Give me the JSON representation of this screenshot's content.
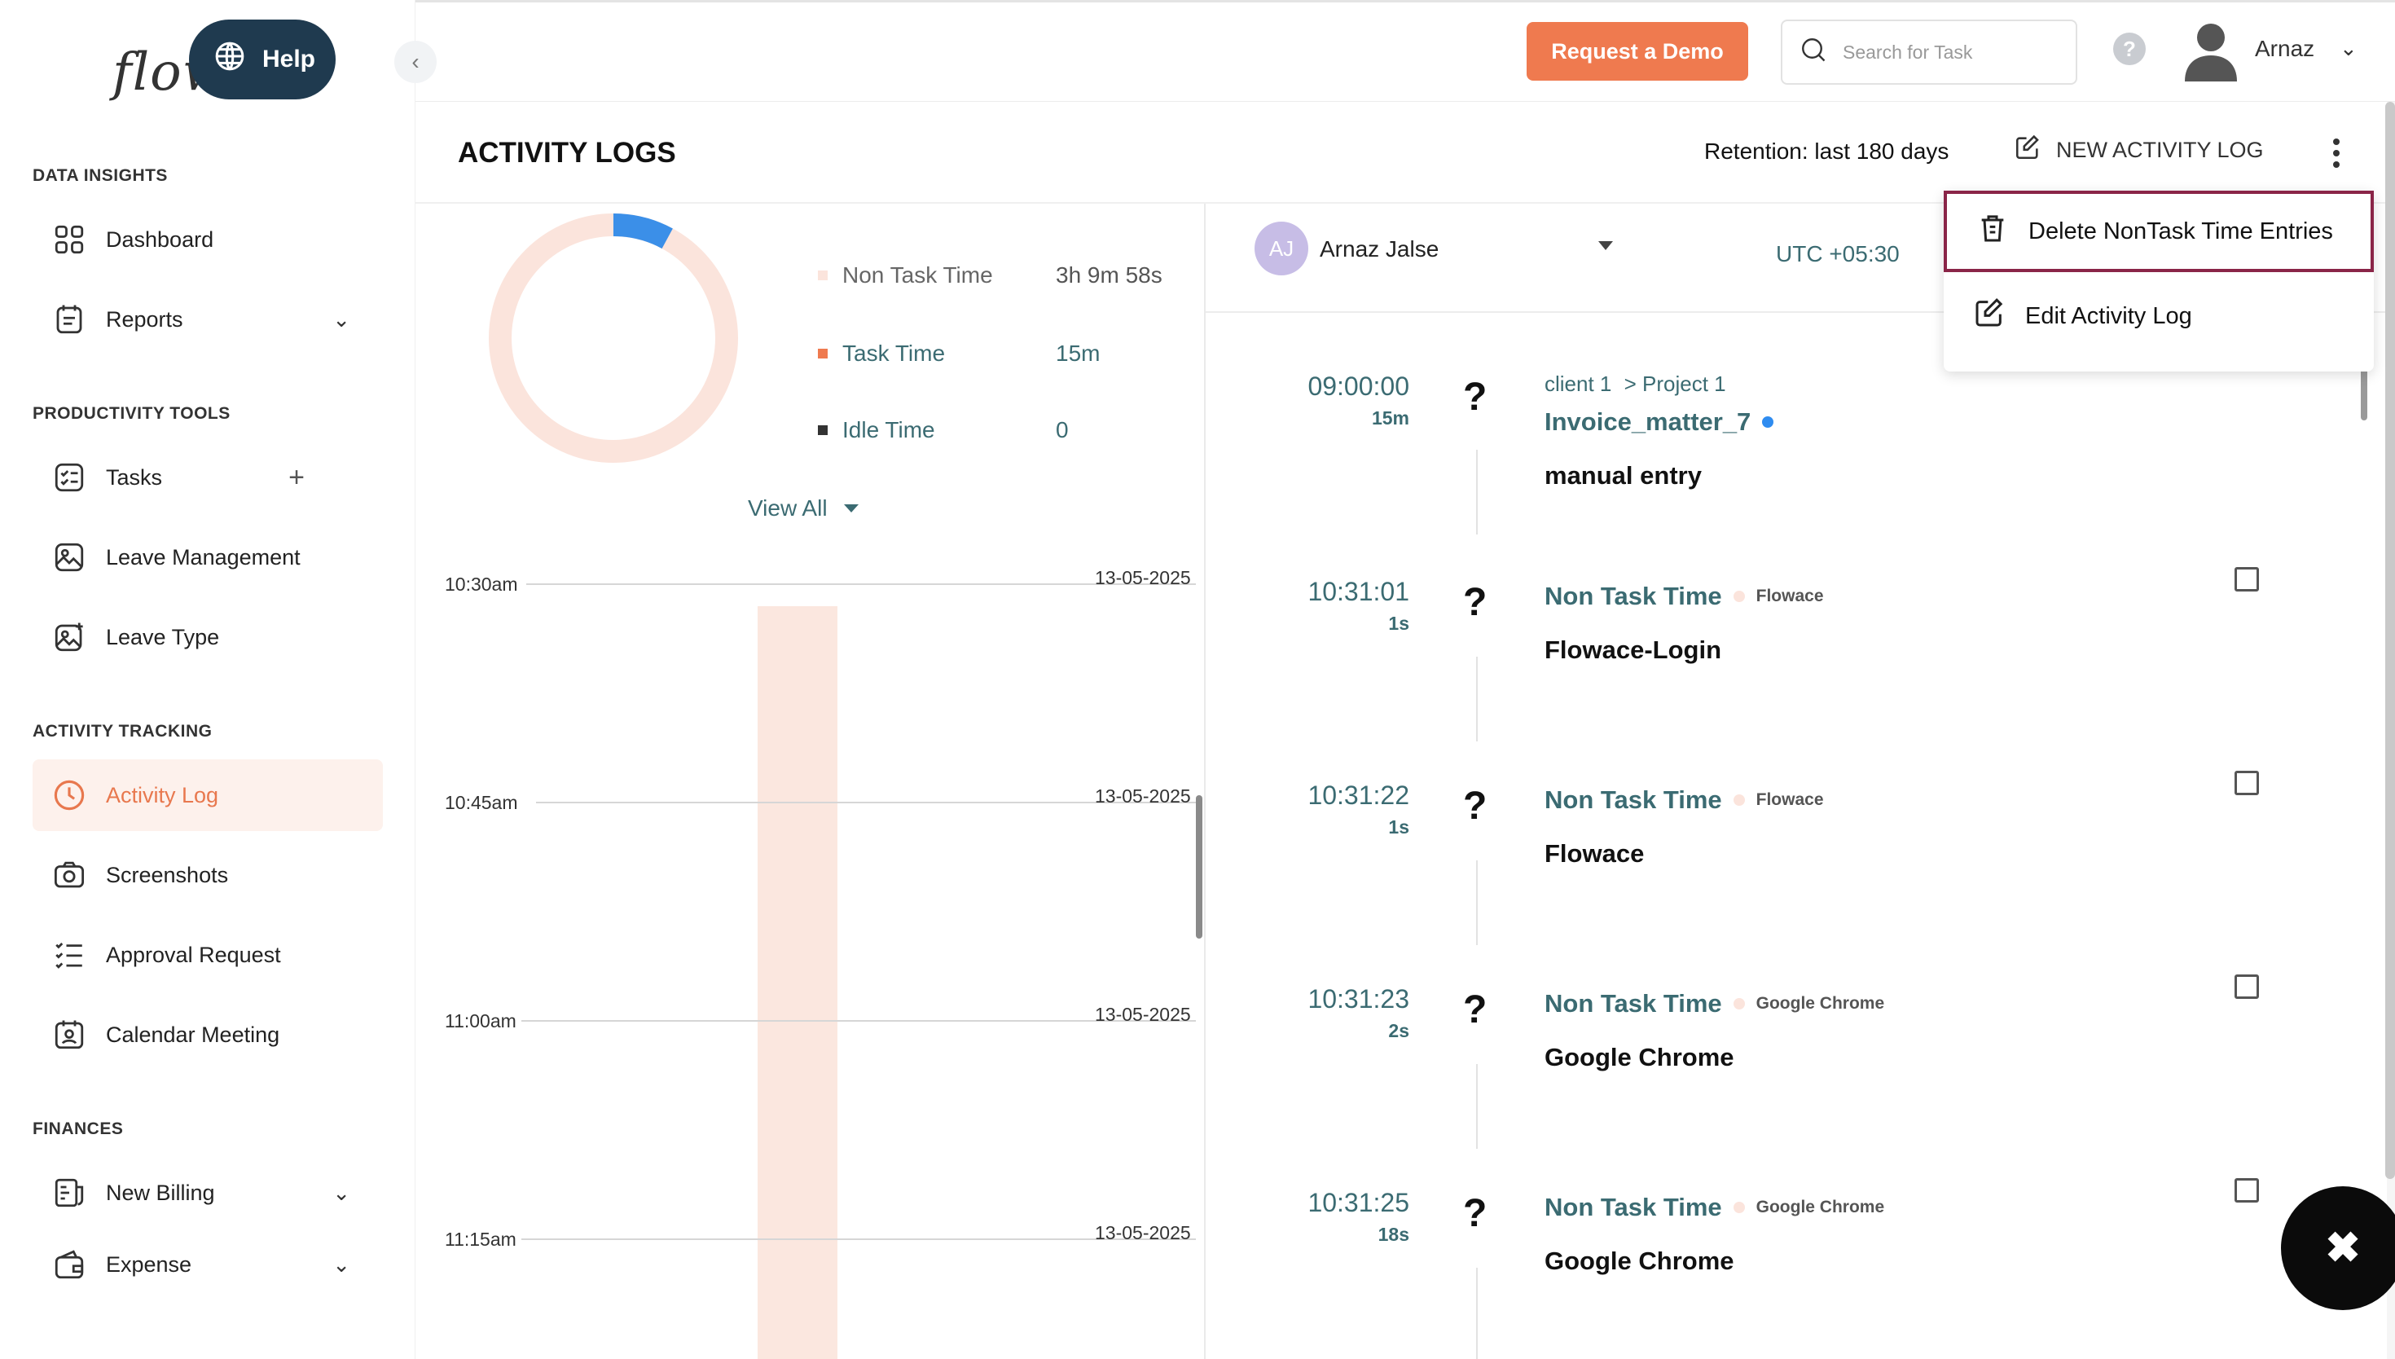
{
  "app": {
    "logo": "flow",
    "help_label": "Help"
  },
  "sidebar": {
    "sections": [
      {
        "label": "DATA INSIGHTS"
      },
      {
        "label": "PRODUCTIVITY TOOLS"
      },
      {
        "label": "ACTIVITY TRACKING"
      },
      {
        "label": "FINANCES"
      }
    ],
    "items": [
      {
        "label": "Dashboard"
      },
      {
        "label": "Reports"
      },
      {
        "label": "Tasks"
      },
      {
        "label": "Leave Management"
      },
      {
        "label": "Leave Type"
      },
      {
        "label": "Activity Log"
      },
      {
        "label": "Screenshots"
      },
      {
        "label": "Approval Request"
      },
      {
        "label": "Calendar Meeting"
      },
      {
        "label": "New Billing"
      },
      {
        "label": "Expense"
      }
    ]
  },
  "topbar": {
    "demo_label": "Request a Demo",
    "search_placeholder": "Search for Task",
    "help_q": "?",
    "user_name": "Arnaz"
  },
  "page": {
    "title": "ACTIVITY LOGS",
    "retention": "Retention: last 180 days",
    "new_log_label": "NEW ACTIVITY LOG"
  },
  "menu": {
    "items": [
      {
        "label": "Delete NonTask Time Entries"
      },
      {
        "label": "Edit Activity Log"
      }
    ]
  },
  "summary": {
    "donut_task_fraction": 0.079,
    "legend": [
      {
        "label": "Non Task Time",
        "value": "3h 9m 58s",
        "color": "#fbe4dc"
      },
      {
        "label": "Task Time",
        "value": "15m",
        "color": "#ef7a4f"
      },
      {
        "label": "Idle Time",
        "value": "0",
        "color": "#333333"
      }
    ],
    "view_all": "View All"
  },
  "timeline": {
    "rows": [
      {
        "time": "10:30am",
        "date": "13-05-2025"
      },
      {
        "time": "10:45am",
        "date": "13-05-2025"
      },
      {
        "time": "11:00am",
        "date": "13-05-2025"
      },
      {
        "time": "11:15am",
        "date": "13-05-2025"
      }
    ]
  },
  "employee": {
    "initials": "AJ",
    "name": "Arnaz Jalse",
    "timezone": "UTC +05:30"
  },
  "entries": [
    {
      "time": "09:00:00",
      "duration": "15m",
      "client": "client 1",
      "project": "> Project 1",
      "task": "Invoice_matter_7",
      "title": "manual entry"
    },
    {
      "time": "10:31:01",
      "duration": "1s",
      "category": "Non Task Time",
      "app": "Flowace",
      "title": "Flowace-Login"
    },
    {
      "time": "10:31:22",
      "duration": "1s",
      "category": "Non Task Time",
      "app": "Flowace",
      "title": "Flowace"
    },
    {
      "time": "10:31:23",
      "duration": "2s",
      "category": "Non Task Time",
      "app": "Google Chrome",
      "title": "Google Chrome"
    },
    {
      "time": "10:31:25",
      "duration": "18s",
      "category": "Non Task Time",
      "app": "Google Chrome",
      "title": "Google Chrome"
    }
  ],
  "colors": {
    "accent": "#ef7a4f",
    "teal": "#3b6b72",
    "navy": "#1f3a4f",
    "menu_highlight": "#8a2548"
  }
}
